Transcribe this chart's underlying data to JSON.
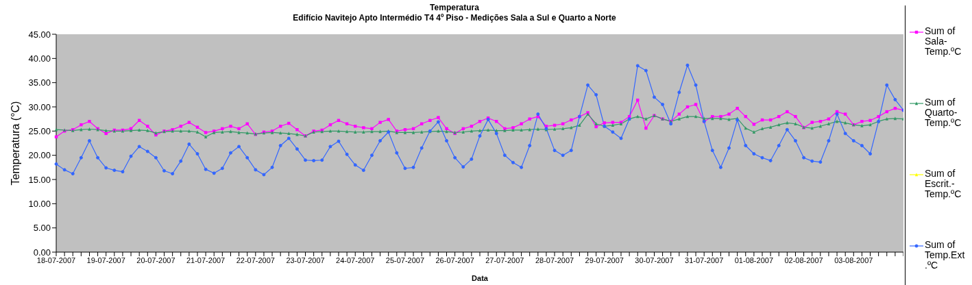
{
  "chart_data": {
    "type": "line",
    "title": "Temperatura",
    "subtitle": "Edifício Navitejo  Apto Intermédio T4  4º Piso - Medições Sala a Sul e Quarto a Norte",
    "xlabel": "Data",
    "ylabel": "Temperatura (°C)",
    "categories": [
      "18-07-2007",
      null,
      null,
      null,
      null,
      null,
      "19-07-2007",
      null,
      null,
      null,
      null,
      null,
      "20-07-2007",
      null,
      null,
      null,
      null,
      null,
      "21-07-2007",
      null,
      null,
      null,
      null,
      null,
      "22-07-2007",
      null,
      null,
      null,
      null,
      null,
      "23-07-2007",
      null,
      null,
      null,
      null,
      null,
      "24-07-2007",
      null,
      null,
      null,
      null,
      null,
      "25-07-2007",
      null,
      null,
      null,
      null,
      null,
      "26-07-2007",
      null,
      null,
      null,
      null,
      null,
      "27-07-2007",
      null,
      null,
      null,
      null,
      null,
      "28-07-2007",
      null,
      null,
      null,
      null,
      null,
      "29-07-2007",
      null,
      null,
      null,
      null,
      null,
      "30-07-2007",
      null,
      null,
      null,
      null,
      null,
      "31-07-2007",
      null,
      null,
      null,
      null,
      null,
      "01-08-2007",
      null,
      null,
      null,
      null,
      null,
      "02-08-2007",
      null,
      null,
      null,
      null,
      null,
      "03-08-2007",
      null,
      null,
      null,
      null,
      null,
      null
    ],
    "series": [
      {
        "name": "Sum of Sala-Temp.ºC",
        "color": "#ff00ff",
        "marker": "square",
        "values": [
          23.8,
          25.0,
          25.3,
          26.3,
          27.0,
          25.5,
          24.5,
          25.2,
          25.2,
          25.5,
          27.2,
          26.0,
          24.2,
          25.0,
          25.3,
          26.0,
          26.8,
          25.8,
          24.7,
          25.0,
          25.5,
          26.0,
          25.5,
          26.5,
          24.3,
          24.8,
          25.0,
          26.0,
          26.6,
          25.3,
          24.0,
          25.0,
          25.2,
          26.3,
          27.2,
          26.5,
          26.0,
          25.7,
          25.5,
          26.8,
          27.4,
          25.0,
          25.3,
          25.5,
          26.5,
          27.2,
          27.8,
          25.5,
          24.5,
          25.5,
          26.0,
          27.0,
          27.7,
          27.0,
          25.5,
          25.7,
          26.5,
          27.5,
          28.0,
          26.0,
          26.2,
          26.5,
          27.3,
          28.0,
          28.8,
          25.9,
          26.7,
          26.8,
          26.8,
          28.0,
          31.4,
          25.6,
          28.2,
          27.5,
          27.0,
          28.5,
          30.0,
          30.5,
          27.0,
          28.0,
          28.0,
          28.5,
          29.7,
          28.0,
          26.4,
          27.3,
          27.3,
          28.0,
          29.0,
          28.0,
          25.7,
          26.8,
          27.0,
          27.5,
          29.0,
          28.5,
          26.3,
          27.0,
          27.2,
          28.0,
          29.0,
          29.7,
          29.3
        ]
      },
      {
        "name": "Sum of Quarto-Temp.ºC",
        "color": "#339966",
        "marker": "triangle",
        "values": [
          25.3,
          25.2,
          25.1,
          25.3,
          25.4,
          25.3,
          25.1,
          25.0,
          25.0,
          25.1,
          25.2,
          25.1,
          24.6,
          24.9,
          25.0,
          25.0,
          25.0,
          24.8,
          23.8,
          24.7,
          24.8,
          24.9,
          24.7,
          24.6,
          24.4,
          24.6,
          24.7,
          24.6,
          24.5,
          24.3,
          24.0,
          24.8,
          24.9,
          25.0,
          25.0,
          24.9,
          24.8,
          24.8,
          24.9,
          24.9,
          25.0,
          24.7,
          24.7,
          24.7,
          24.8,
          24.9,
          25.0,
          24.9,
          24.7,
          24.8,
          25.0,
          25.1,
          25.2,
          25.1,
          25.1,
          25.2,
          25.2,
          25.3,
          25.4,
          25.3,
          25.4,
          25.5,
          25.7,
          26.2,
          28.5,
          26.5,
          26.0,
          26.2,
          26.5,
          27.5,
          28.0,
          27.5,
          28.2,
          27.5,
          27.0,
          27.5,
          28.0,
          28.0,
          27.6,
          27.6,
          27.6,
          27.4,
          27.6,
          25.6,
          24.8,
          25.5,
          25.8,
          26.3,
          26.7,
          26.5,
          25.8,
          25.6,
          26.0,
          26.5,
          27.0,
          26.7,
          26.3,
          26.1,
          26.3,
          27.0,
          27.5,
          27.6,
          27.5
        ]
      },
      {
        "name": "Sum of Escrit.-Temp.ºC",
        "color": "#ffff00",
        "marker": "triangle",
        "values": [
          null,
          null,
          null,
          null,
          null,
          null,
          null,
          null,
          null,
          null,
          null,
          null,
          null,
          null,
          null,
          null,
          null,
          null,
          null,
          null,
          null,
          null,
          null,
          null,
          null,
          null,
          null,
          null,
          null,
          null,
          null,
          null,
          null,
          null,
          null,
          null,
          null,
          null,
          null,
          null,
          null,
          null,
          null,
          null,
          null,
          null,
          null,
          null,
          null,
          null,
          null,
          null,
          null,
          null,
          null,
          null,
          null,
          null,
          null,
          null,
          null,
          null,
          null,
          null,
          null,
          null,
          null,
          null,
          null,
          null,
          null,
          null,
          null,
          null,
          null,
          null,
          null,
          null,
          null,
          null,
          null,
          null,
          null,
          null,
          null,
          null,
          null,
          null,
          null,
          null,
          null,
          null,
          null,
          null,
          null,
          null,
          null,
          null,
          null,
          null,
          null,
          null,
          null
        ]
      },
      {
        "name": "Sum of Temp.Ext.ºC",
        "color": "#3366ff",
        "marker": "circle",
        "values": [
          18.2,
          17.0,
          16.2,
          19.5,
          23.0,
          19.5,
          17.4,
          16.9,
          16.6,
          19.8,
          21.8,
          20.8,
          19.5,
          16.8,
          16.2,
          18.8,
          22.3,
          20.3,
          17.1,
          16.3,
          17.3,
          20.5,
          21.8,
          19.5,
          17.0,
          16.0,
          17.5,
          22.0,
          23.5,
          21.3,
          19.0,
          18.9,
          19.0,
          21.8,
          22.9,
          20.2,
          18.0,
          16.9,
          20.0,
          23.0,
          24.8,
          20.5,
          17.3,
          17.5,
          21.5,
          25.0,
          26.9,
          23.0,
          19.5,
          17.6,
          19.2,
          24.0,
          27.4,
          24.5,
          20.0,
          18.5,
          17.5,
          22.0,
          28.5,
          25.5,
          21.0,
          20.0,
          21.0,
          28.0,
          34.5,
          32.5,
          26.0,
          24.8,
          23.5,
          27.5,
          38.5,
          37.5,
          32.0,
          30.5,
          26.5,
          33.0,
          38.6,
          34.5,
          27.0,
          21.0,
          17.5,
          21.5,
          27.3,
          22.0,
          20.3,
          19.5,
          18.9,
          22.0,
          25.3,
          23.0,
          19.5,
          18.8,
          18.6,
          23.0,
          28.5,
          24.5,
          23.0,
          22.0,
          20.3,
          27.0,
          34.5,
          31.5,
          29.3
        ]
      }
    ],
    "ylim": [
      0,
      45
    ],
    "yticks": [
      {
        "value": 0,
        "label": "0.00"
      },
      {
        "value": 5,
        "label": "5.00"
      },
      {
        "value": 10,
        "label": "10.00"
      },
      {
        "value": 15,
        "label": "15.00"
      },
      {
        "value": 20,
        "label": "20.00"
      },
      {
        "value": 25,
        "label": "25.00"
      },
      {
        "value": 30,
        "label": "30.00"
      },
      {
        "value": 35,
        "label": "35.00"
      },
      {
        "value": 40,
        "label": "40.00"
      },
      {
        "value": 45,
        "label": "45.00"
      }
    ],
    "grid": false,
    "legend": "right",
    "line_style": "solid"
  }
}
